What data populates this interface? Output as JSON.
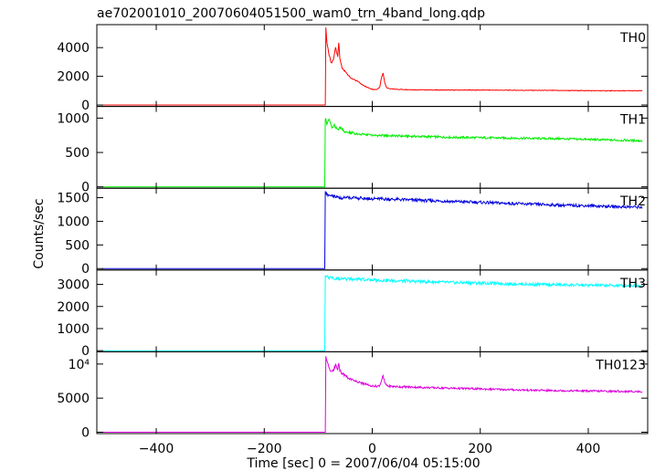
{
  "chart_data": {
    "type": "line",
    "title": "ae702001010_20070604051500_wam0_trn_4band_long.qdp",
    "xlabel": "Time [sec] 0 = 2007/06/04 05:15:00",
    "ylabel": "Counts/sec",
    "xlim": [
      -510,
      510
    ],
    "xticks": [
      -400,
      -200,
      0,
      200,
      400
    ],
    "grid": false,
    "panels": [
      {
        "name": "TH0",
        "color": "#ff0000",
        "ylim": [
          -100,
          5600
        ],
        "yticks": [
          {
            "v": 0,
            "t": "0"
          },
          {
            "v": 2000,
            "t": "2000"
          },
          {
            "v": 4000,
            "t": "4000"
          }
        ],
        "x": [
          -500,
          -87,
          -86,
          -84,
          -80,
          -76,
          -72,
          -68,
          -64,
          -62,
          -60,
          -56,
          -50,
          -45,
          -40,
          -35,
          -30,
          -25,
          -20,
          -15,
          -10,
          -5,
          0,
          5,
          10,
          14,
          17,
          20,
          23,
          26,
          30,
          40,
          60,
          80,
          100,
          150,
          200,
          250,
          300,
          350,
          400,
          450,
          500
        ],
        "y": [
          0,
          0,
          5400,
          4300,
          3500,
          2900,
          3100,
          4000,
          3300,
          4400,
          3200,
          2600,
          2300,
          2100,
          1900,
          1800,
          1700,
          1600,
          1450,
          1350,
          1250,
          1150,
          1100,
          1080,
          1100,
          1250,
          1900,
          2200,
          1600,
          1250,
          1150,
          1100,
          1080,
          1060,
          1050,
          1040,
          1040,
          1030,
          1020,
          1010,
          1000,
          990,
          990
        ]
      },
      {
        "name": "TH1",
        "color": "#00ee00",
        "ylim": [
          -20,
          1170
        ],
        "yticks": [
          {
            "v": 0,
            "t": "0"
          },
          {
            "v": 500,
            "t": "500"
          },
          {
            "v": 1000,
            "t": "1000"
          }
        ],
        "x": [
          -500,
          -88,
          -87,
          -84,
          -80,
          -75,
          -70,
          -65,
          -60,
          -50,
          -40,
          -25,
          0,
          50,
          100,
          150,
          200,
          250,
          300,
          350,
          400,
          450,
          500
        ],
        "y": [
          0,
          0,
          1000,
          920,
          980,
          850,
          900,
          830,
          860,
          800,
          790,
          770,
          750,
          740,
          730,
          720,
          715,
          710,
          705,
          700,
          690,
          680,
          670
        ]
      },
      {
        "name": "TH2",
        "color": "#0000dd",
        "ylim": [
          -30,
          1700
        ],
        "yticks": [
          {
            "v": 0,
            "t": "0"
          },
          {
            "v": 500,
            "t": "500"
          },
          {
            "v": 1000,
            "t": "1000"
          },
          {
            "v": 1500,
            "t": "1500"
          }
        ],
        "x": [
          -500,
          -88,
          -87,
          -84,
          -80,
          -75,
          -70,
          -60,
          -50,
          0,
          50,
          100,
          150,
          200,
          250,
          300,
          350,
          400,
          450,
          500
        ],
        "y": [
          0,
          0,
          1600,
          1580,
          1540,
          1550,
          1520,
          1500,
          1500,
          1480,
          1460,
          1440,
          1420,
          1400,
          1380,
          1360,
          1340,
          1330,
          1310,
          1300
        ]
      },
      {
        "name": "TH3",
        "color": "#00ffff",
        "ylim": [
          -50,
          3650
        ],
        "yticks": [
          {
            "v": 0,
            "t": "0"
          },
          {
            "v": 1000,
            "t": "1000"
          },
          {
            "v": 2000,
            "t": "2000"
          },
          {
            "v": 3000,
            "t": "3000"
          }
        ],
        "x": [
          -500,
          -88,
          -87,
          -84,
          -80,
          -75,
          -70,
          -60,
          -50,
          0,
          50,
          100,
          150,
          200,
          250,
          300,
          350,
          400,
          450,
          500
        ],
        "y": [
          0,
          0,
          3400,
          3350,
          3300,
          3320,
          3280,
          3260,
          3240,
          3200,
          3160,
          3120,
          3080,
          3060,
          3030,
          3000,
          2980,
          2960,
          2950,
          2940
        ]
      },
      {
        "name": "TH0123",
        "color": "#dd00dd",
        "ylim": [
          -200,
          11800
        ],
        "yticks": [
          {
            "v": 0,
            "t": "0"
          },
          {
            "v": 5000,
            "t": "5000"
          },
          {
            "v": 10000,
            "t": "10⁴"
          }
        ],
        "x": [
          -500,
          -87,
          -86,
          -84,
          -80,
          -76,
          -72,
          -68,
          -64,
          -62,
          -60,
          -56,
          -50,
          -45,
          -40,
          -35,
          -30,
          -25,
          -20,
          -15,
          -10,
          -5,
          0,
          10,
          14,
          17,
          20,
          23,
          26,
          30,
          40,
          60,
          100,
          150,
          200,
          250,
          300,
          350,
          400,
          450,
          500
        ],
        "y": [
          0,
          0,
          11200,
          10400,
          9500,
          8900,
          9000,
          9900,
          9200,
          10200,
          9100,
          8600,
          8300,
          8000,
          7800,
          7650,
          7500,
          7350,
          7200,
          7100,
          7000,
          6900,
          6800,
          6750,
          6900,
          7600,
          8200,
          7300,
          6900,
          6750,
          6700,
          6650,
          6550,
          6450,
          6350,
          6250,
          6150,
          6100,
          6050,
          6000,
          5950
        ]
      }
    ]
  }
}
